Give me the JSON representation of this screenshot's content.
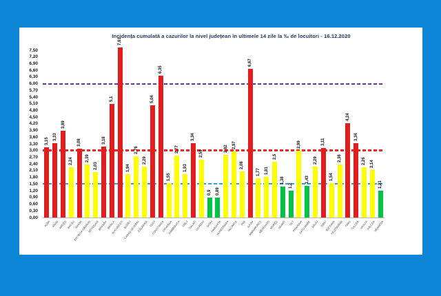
{
  "page": {
    "background_color": "#0d86d8",
    "panel_color": "#ffffff",
    "title_color": "#1f3864"
  },
  "chart_data": {
    "type": "bar",
    "title": "Incidența cumulată a cazurilor la nivel județean în ultimele 14 zile   la ‰ de locuitori  - 16.12.2020",
    "xlabel": "",
    "ylabel": "",
    "ylim": [
      0,
      7.5
    ],
    "ytick_step": 0.3,
    "decimal_separator": ",",
    "grid": false,
    "legend": "none",
    "thresholds": [
      {
        "name": "yellow-zone-threshold",
        "value": 1.5,
        "color": "#2e9fd8",
        "style": "dashed"
      },
      {
        "name": "red-zone-threshold",
        "value": 3.0,
        "color": "#ff2222",
        "style": "dashed"
      },
      {
        "name": "quarantine-threshold",
        "value": 6.0,
        "color": "#7030a0",
        "style": "dashed"
      }
    ],
    "zone_colors": {
      "green": "#00c244",
      "yellow": "#ffff00",
      "red": "#e11d1d"
    },
    "categories": [
      "ALBA",
      "ARAD",
      "ARGEȘ",
      "BACĂU",
      "BIHOR",
      "BISTRIȚA-NĂSĂUD",
      "BOTOȘANI",
      "BRAȘOV",
      "BRĂILA",
      "BUCUREȘTI",
      "BUZĂU",
      "CARAȘ-SEVERIN",
      "CĂLĂRAȘI",
      "CLUJ",
      "CONSTANȚA",
      "COVASNA",
      "DÂMBOVIȚA",
      "DOLJ",
      "GALAȚI",
      "GIURGIU",
      "GORJ",
      "HARGHITA",
      "HUNEDOARA",
      "IALOMIȚA",
      "IAȘI",
      "ILFOV",
      "MARAMUREȘ",
      "MEHEDINȚI",
      "MUREȘ",
      "NEAMȚ",
      "OLT",
      "PRAHOVA",
      "SATU MARE",
      "SĂLAJ",
      "SIBIU",
      "SUCEAVA",
      "TELEORMAN",
      "TIMIȘ",
      "TULCEA",
      "VASLUI",
      "VÂLCEA",
      "VRANCEA"
    ],
    "values": [
      3.15,
      3.33,
      3.89,
      2.24,
      3.08,
      2.39,
      2.03,
      3.18,
      5.1,
      7.61,
      1.94,
      2.76,
      2.29,
      5.04,
      6.35,
      1.55,
      2.77,
      1.93,
      3.34,
      2.58,
      0.9,
      0.89,
      2.82,
      2.97,
      2.08,
      6.67,
      1.77,
      1.81,
      2.5,
      1.38,
      1.2,
      2.99,
      1.43,
      2.29,
      3.11,
      1.54,
      2.38,
      4.24,
      3.34,
      2.26,
      2.14,
      1.21
    ],
    "value_labels": [
      "3,15",
      "3,33",
      "3,89",
      "2,24",
      "3,08",
      "2,39",
      "2,03",
      "3,18",
      "5,1",
      "7,61",
      "1,94",
      "2,76",
      "2,29",
      "5,04",
      "6,35",
      "1,55",
      "2,77",
      "1,93",
      "3,34",
      "2,58",
      "0,9",
      "0,89",
      "2,82",
      "2,97",
      "2,08",
      "6,67",
      "1,77",
      "1,81",
      "2,5",
      "1,38",
      "1,2",
      "2,99",
      "1,43",
      "2,29",
      "3,11",
      "1,54",
      "2,38",
      "4,24",
      "3,34",
      "2,26",
      "2,14",
      "1,21"
    ]
  }
}
